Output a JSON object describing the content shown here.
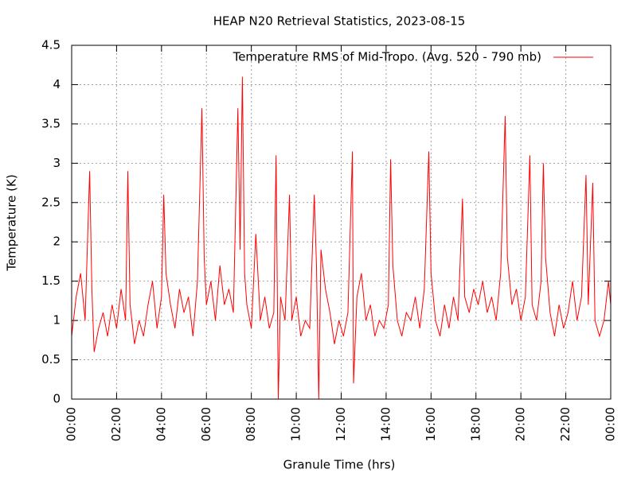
{
  "chart_data": {
    "type": "line",
    "title": "HEAP N20 Retrieval Statistics, 2023-08-15",
    "xlabel": "Granule Time (hrs)",
    "ylabel": "Temperature (K)",
    "xlim": [
      0,
      24
    ],
    "ylim": [
      0,
      4.5
    ],
    "xticks": [
      {
        "value": 0,
        "label": "00:00"
      },
      {
        "value": 2,
        "label": "02:00"
      },
      {
        "value": 4,
        "label": "04:00"
      },
      {
        "value": 6,
        "label": "06:00"
      },
      {
        "value": 8,
        "label": "08:00"
      },
      {
        "value": 10,
        "label": "10:00"
      },
      {
        "value": 12,
        "label": "12:00"
      },
      {
        "value": 14,
        "label": "14:00"
      },
      {
        "value": 16,
        "label": "16:00"
      },
      {
        "value": 18,
        "label": "18:00"
      },
      {
        "value": 20,
        "label": "20:00"
      },
      {
        "value": 22,
        "label": "22:00"
      },
      {
        "value": 24,
        "label": "00:00"
      }
    ],
    "yticks": [
      0,
      0.5,
      1,
      1.5,
      2,
      2.5,
      3,
      3.5,
      4,
      4.5
    ],
    "grid": true,
    "legend": "top-right",
    "x": [
      0.0,
      0.2,
      0.4,
      0.6,
      0.8,
      0.9,
      1.0,
      1.2,
      1.4,
      1.6,
      1.8,
      2.0,
      2.2,
      2.4,
      2.5,
      2.6,
      2.8,
      3.0,
      3.2,
      3.4,
      3.6,
      3.8,
      4.0,
      4.1,
      4.2,
      4.4,
      4.6,
      4.8,
      5.0,
      5.2,
      5.4,
      5.6,
      5.8,
      5.9,
      6.0,
      6.2,
      6.4,
      6.6,
      6.8,
      7.0,
      7.2,
      7.4,
      7.5,
      7.6,
      7.7,
      7.8,
      8.0,
      8.2,
      8.4,
      8.6,
      8.8,
      9.0,
      9.1,
      9.2,
      9.3,
      9.5,
      9.7,
      9.8,
      10.0,
      10.2,
      10.4,
      10.6,
      10.8,
      10.9,
      11.0,
      11.1,
      11.3,
      11.5,
      11.7,
      11.9,
      12.1,
      12.3,
      12.5,
      12.55,
      12.7,
      12.9,
      13.1,
      13.3,
      13.5,
      13.7,
      13.9,
      14.1,
      14.2,
      14.3,
      14.5,
      14.7,
      14.9,
      15.1,
      15.3,
      15.5,
      15.7,
      15.9,
      16.0,
      16.2,
      16.4,
      16.6,
      16.8,
      17.0,
      17.2,
      17.4,
      17.5,
      17.7,
      17.9,
      18.1,
      18.3,
      18.5,
      18.7,
      18.9,
      19.1,
      19.3,
      19.4,
      19.6,
      19.8,
      20.0,
      20.2,
      20.4,
      20.5,
      20.7,
      20.9,
      21.0,
      21.1,
      21.3,
      21.5,
      21.7,
      21.9,
      22.1,
      22.3,
      22.5,
      22.7,
      22.9,
      23.0,
      23.2,
      23.3,
      23.5,
      23.7,
      23.9,
      24.0
    ],
    "series": [
      {
        "name": "Temperature RMS of Mid-Tropo. (Avg. 520 - 790 mb)",
        "color": "#ff0000",
        "values": [
          0.8,
          1.3,
          1.6,
          1.0,
          2.9,
          1.4,
          0.6,
          0.9,
          1.1,
          0.8,
          1.2,
          0.9,
          1.4,
          1.0,
          2.9,
          1.2,
          0.7,
          1.0,
          0.8,
          1.2,
          1.5,
          0.9,
          1.3,
          2.6,
          1.6,
          1.2,
          0.9,
          1.4,
          1.1,
          1.3,
          0.8,
          1.5,
          3.7,
          1.8,
          1.2,
          1.5,
          1.0,
          1.7,
          1.2,
          1.4,
          1.1,
          3.7,
          1.9,
          4.1,
          1.6,
          1.2,
          0.9,
          2.1,
          1.0,
          1.3,
          0.9,
          1.1,
          3.1,
          0.0,
          1.3,
          1.0,
          2.6,
          1.0,
          1.3,
          0.8,
          1.0,
          0.9,
          2.6,
          1.7,
          0.0,
          1.9,
          1.4,
          1.1,
          0.7,
          1.0,
          0.8,
          1.1,
          3.15,
          0.2,
          1.3,
          1.6,
          1.0,
          1.2,
          0.8,
          1.0,
          0.9,
          1.2,
          3.05,
          1.7,
          1.0,
          0.8,
          1.1,
          1.0,
          1.3,
          0.9,
          1.4,
          3.15,
          1.6,
          1.0,
          0.8,
          1.2,
          0.9,
          1.3,
          1.0,
          2.55,
          1.3,
          1.1,
          1.4,
          1.2,
          1.5,
          1.1,
          1.3,
          1.0,
          1.6,
          3.6,
          1.8,
          1.2,
          1.4,
          1.0,
          1.3,
          3.1,
          1.2,
          1.0,
          1.5,
          3.0,
          1.8,
          1.1,
          0.8,
          1.2,
          0.9,
          1.1,
          1.5,
          1.0,
          1.3,
          2.85,
          1.2,
          2.75,
          1.0,
          0.8,
          1.0,
          1.5,
          1.2
        ]
      }
    ]
  }
}
